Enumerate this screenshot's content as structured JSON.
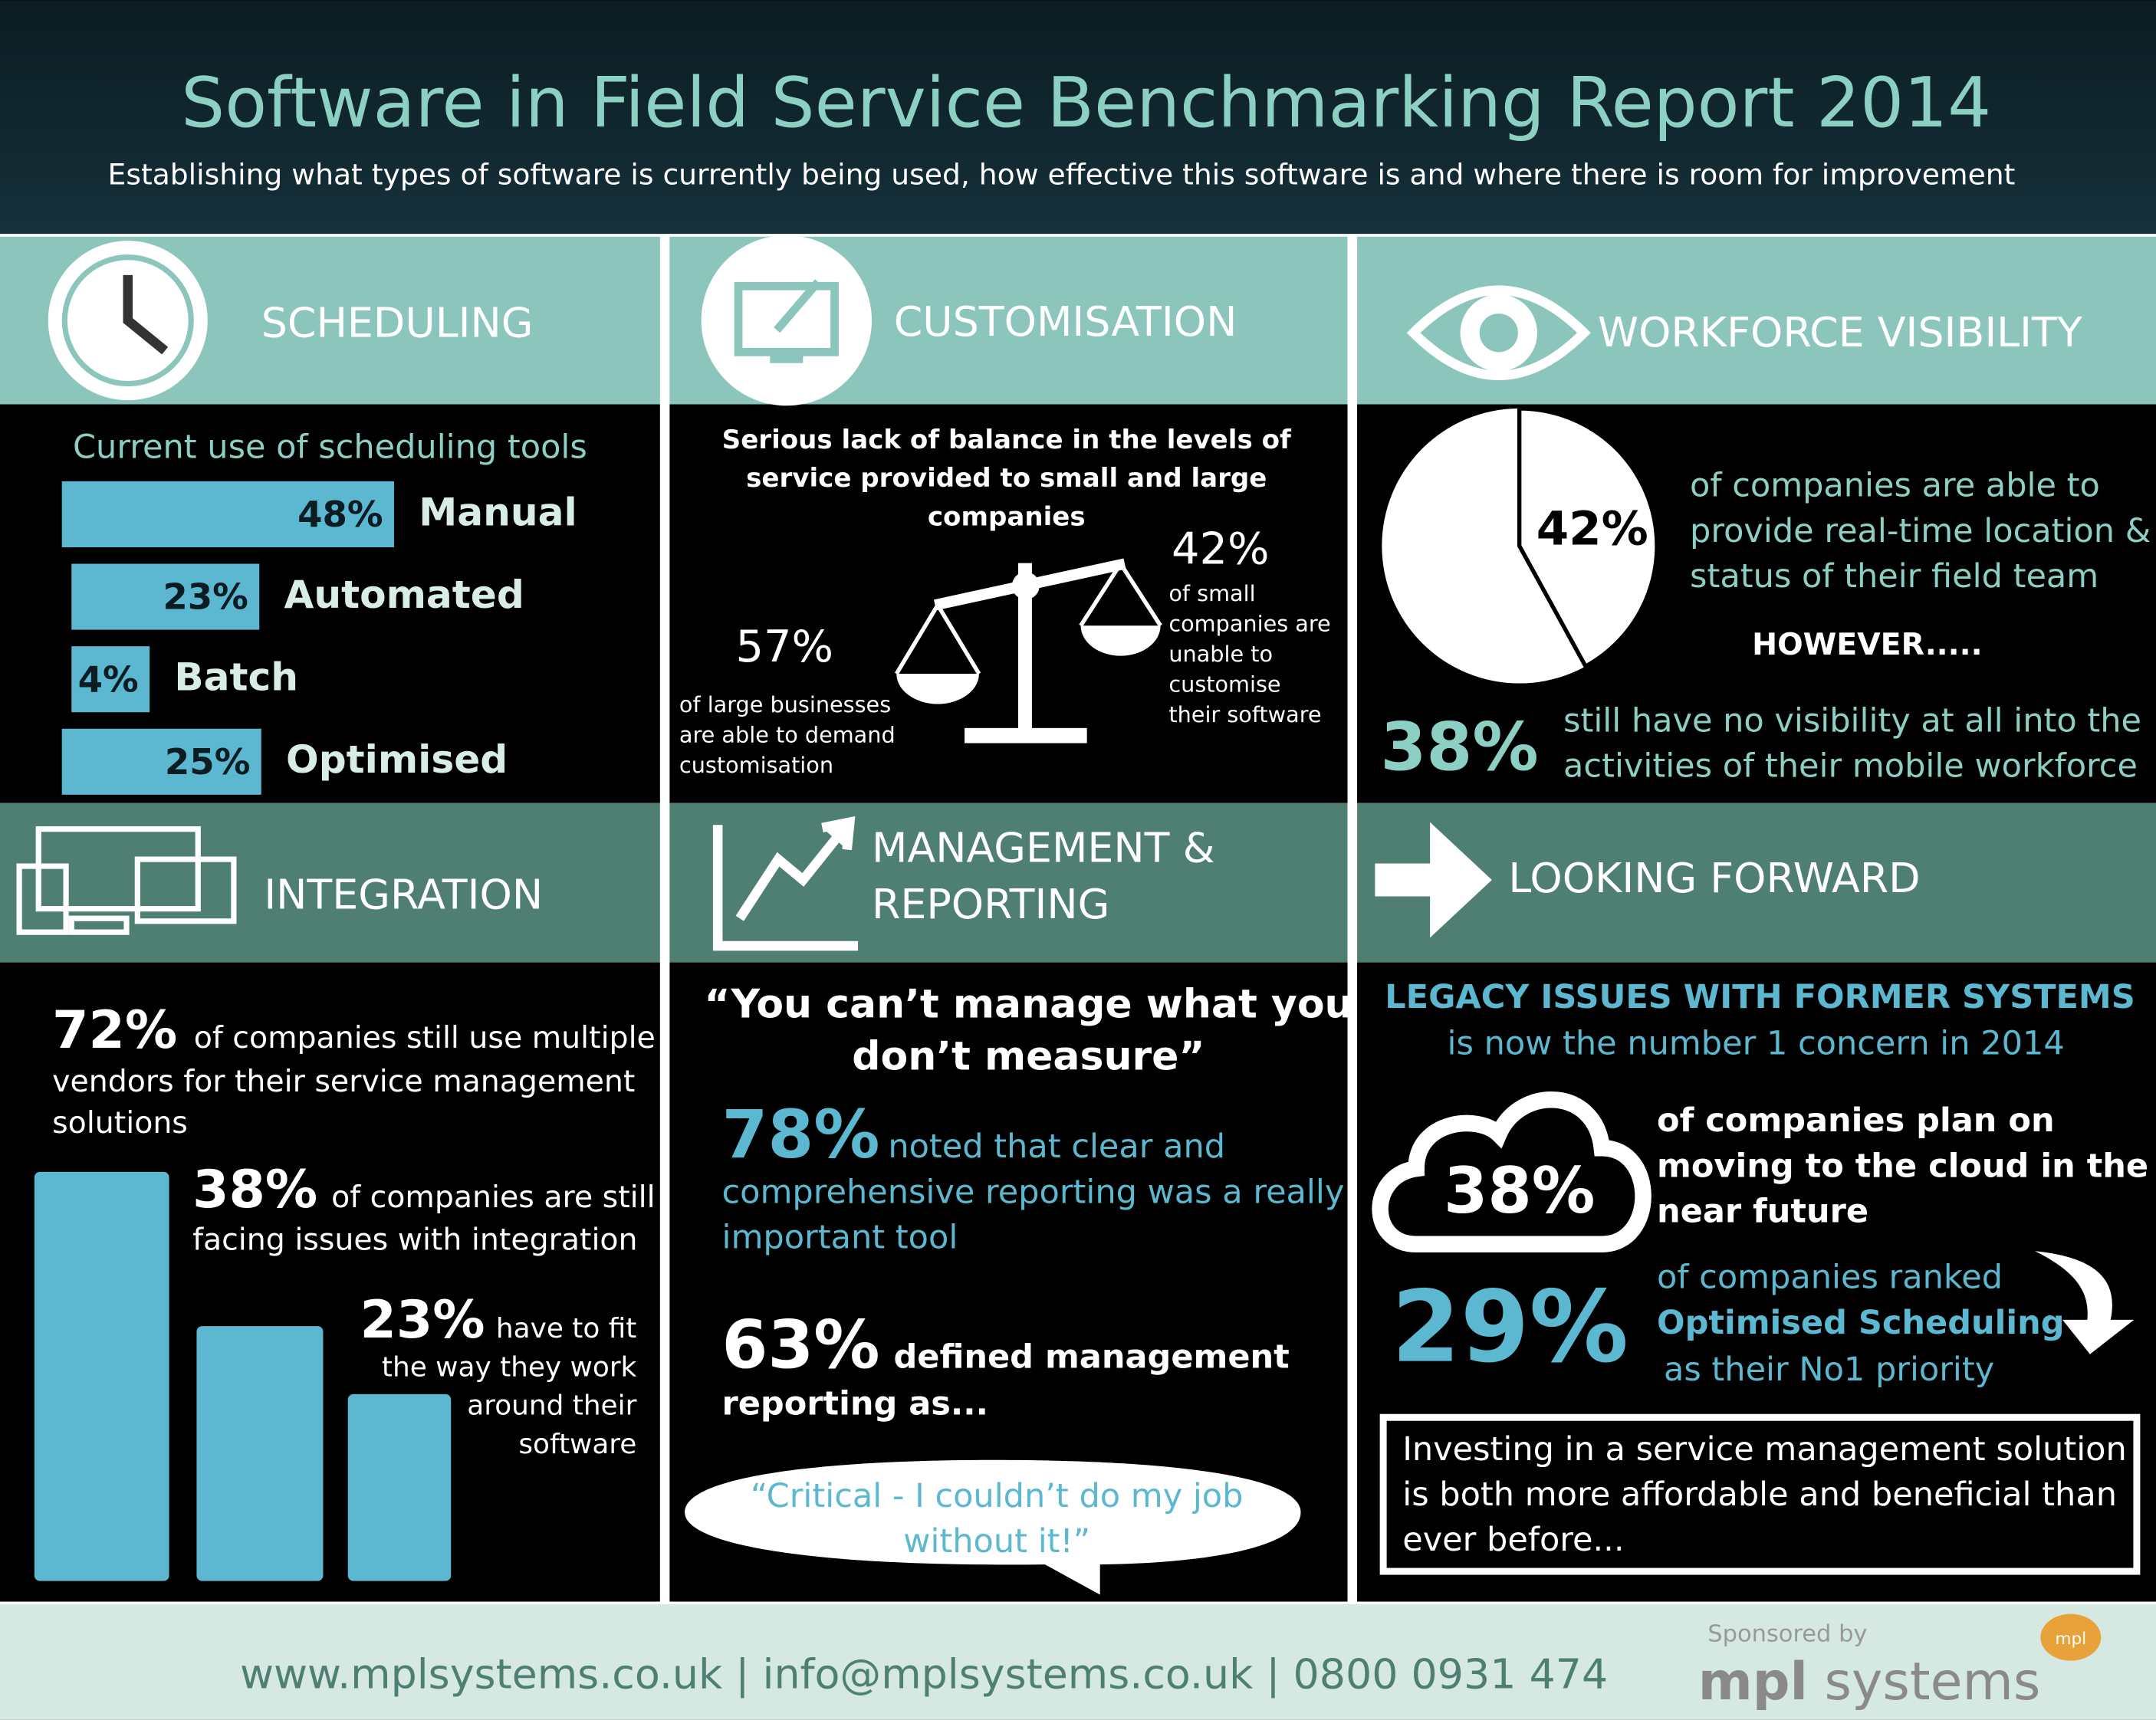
{
  "header": {
    "title": "Software in Field Service Benchmarking Report 2014",
    "subtitle": "Establishing what types of software is currently being used, how effective this software is and where there is room for improvement"
  },
  "scheduling": {
    "heading": "SCHEDULING",
    "chart_title": "Current use of scheduling tools",
    "categories": [
      "Manual",
      "Automated",
      "Batch",
      "Optimised"
    ],
    "values": [
      48,
      23,
      4,
      25
    ],
    "value_labels": [
      "48%",
      "23%",
      "4%",
      "25%"
    ]
  },
  "customisation": {
    "heading": "CUSTOMISATION",
    "intro": [
      "Serious lack of balance in the levels of",
      "service provided to small and large",
      "companies"
    ],
    "large": {
      "stat": "57%",
      "text": [
        "of large businesses",
        "are able to demand",
        "customisation"
      ]
    },
    "small": {
      "stat": "42%",
      "text": [
        "of small",
        "companies are",
        "unable to",
        "customise",
        "their software"
      ]
    }
  },
  "workforce": {
    "heading": "WORKFORCE VISIBILITY",
    "pie": {
      "value": 42,
      "value_label": "42%"
    },
    "pie_text": [
      "of companies are able to",
      "provide real-time location &",
      "status of their field team"
    ],
    "however": "HOWEVER.....",
    "stat": "38%",
    "text": [
      "still have no visibility at all into the",
      "activities of their mobile workforce"
    ]
  },
  "integration": {
    "heading": "INTEGRATION",
    "values": [
      72,
      38,
      23
    ],
    "value_labels": [
      "72%",
      "38%",
      "23%"
    ],
    "texts": [
      [
        "of companies still use multiple",
        "vendors for their service management",
        "solutions"
      ],
      [
        "of companies are still",
        "facing issues with integration"
      ],
      [
        "have to fit",
        "the way they work",
        "around their",
        "software"
      ]
    ]
  },
  "management": {
    "heading": [
      "MANAGEMENT &",
      "REPORTING"
    ],
    "quote": [
      "“You can’t manage what you",
      "don’t measure”"
    ],
    "stat1": "78%",
    "text1": [
      "noted that clear and",
      "comprehensive reporting was a really",
      "important tool"
    ],
    "stat2": "63%",
    "text2": [
      "defined management",
      "reporting as..."
    ],
    "bubble": [
      "“Critical - I couldn’t do my job",
      "without it!”"
    ]
  },
  "forward": {
    "heading": "LOOKING FORWARD",
    "legacy": [
      "LEGACY ISSUES WITH FORMER SYSTEMS",
      "is now the number 1 concern in 2014"
    ],
    "cloud_stat": "38%",
    "cloud_text": [
      "of companies plan on",
      "moving to the cloud in the",
      "near future"
    ],
    "stat2": "29%",
    "text2": [
      "of companies ranked",
      "Optimised Scheduling",
      "as their No1 priority"
    ],
    "box": [
      "Investing in a service management solution",
      "is both more affordable and beneficial than",
      "ever before..."
    ]
  },
  "footer": {
    "contact": "www.mplsystems.co.uk | info@mplsystems.co.uk | 0800 0931 474",
    "sponsored": "Sponsored by",
    "brand_bold": "mpl",
    "brand_rest": " systems",
    "logo": "mpl"
  }
}
